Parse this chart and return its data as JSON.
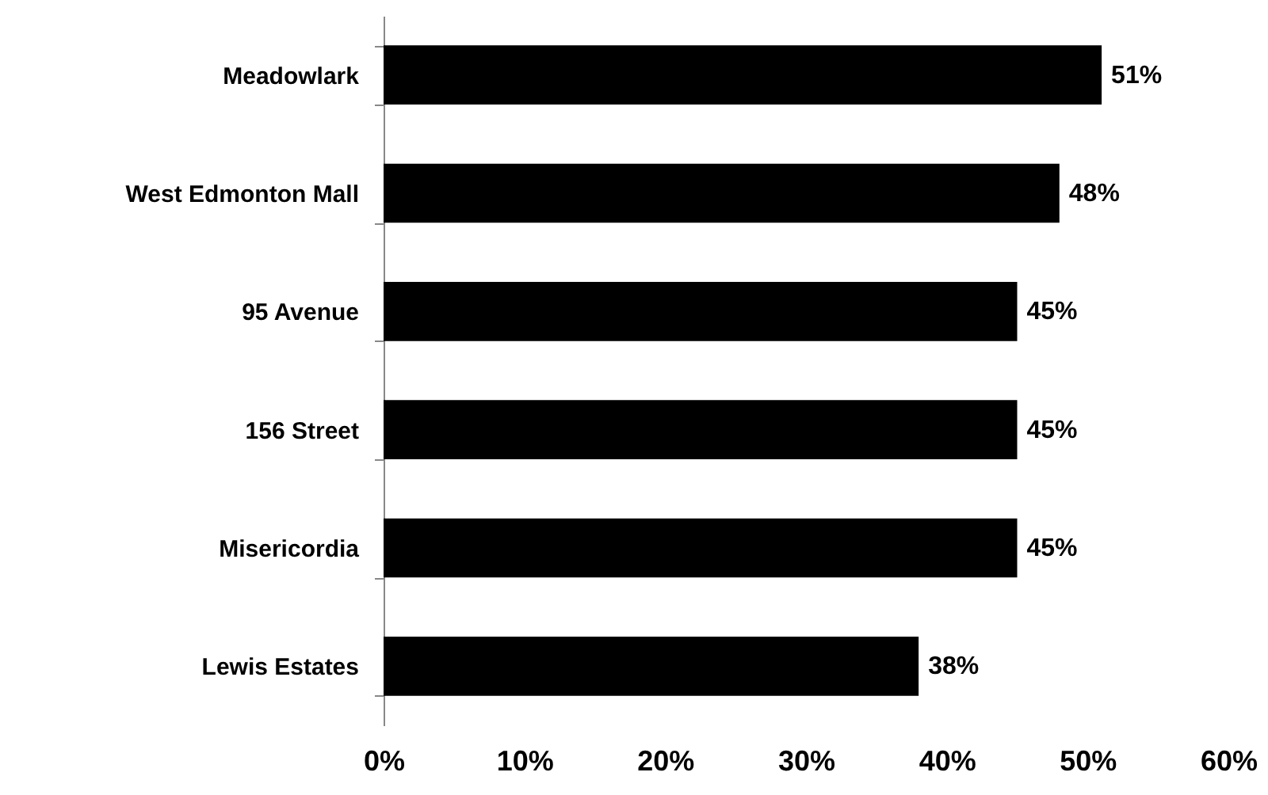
{
  "chart_data": {
    "type": "bar",
    "orientation": "horizontal",
    "categories": [
      "Meadowlark",
      "West Edmonton Mall",
      "95 Avenue",
      "156 Street",
      "Misericordia",
      "Lewis Estates"
    ],
    "values": [
      51,
      48,
      45,
      45,
      45,
      38
    ],
    "value_labels": [
      "51%",
      "48%",
      "45%",
      "45%",
      "45%",
      "38%"
    ],
    "color": "#000000",
    "xlim": [
      0,
      60
    ],
    "xticks": [
      {
        "value": 0,
        "label": "0%"
      },
      {
        "value": 10,
        "label": "10%"
      },
      {
        "value": 20,
        "label": "20%"
      },
      {
        "value": 30,
        "label": "30%"
      },
      {
        "value": 40,
        "label": "40%"
      },
      {
        "value": 50,
        "label": "50%"
      },
      {
        "value": 60,
        "label": "60%"
      }
    ],
    "grid": false
  }
}
